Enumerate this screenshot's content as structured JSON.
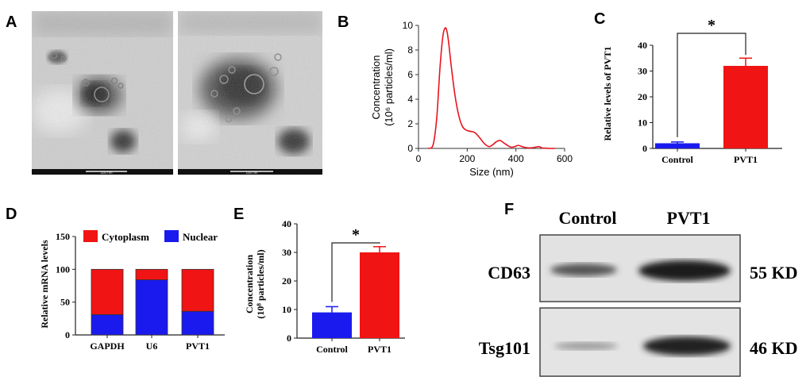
{
  "panels": {
    "a": {
      "label": "A",
      "scale_left": "200 nm",
      "scale_right": "100 nm"
    },
    "b": {
      "label": "B"
    },
    "c": {
      "label": "C"
    },
    "d": {
      "label": "D"
    },
    "e": {
      "label": "E"
    },
    "f": {
      "label": "F"
    }
  },
  "chart_data": [
    {
      "panel": "B",
      "type": "line",
      "xlabel": "Size (nm)",
      "ylabel": "Concentration",
      "ylabel_unit": "(10⁶ particles/ml)",
      "xlim": [
        0,
        600
      ],
      "ylim": [
        0,
        10
      ],
      "xticks": [
        0,
        200,
        400,
        600
      ],
      "yticks": [
        0,
        2,
        4,
        6,
        8,
        10
      ],
      "color": "#e8141e",
      "x": [
        40,
        60,
        75,
        88,
        100,
        110,
        118,
        125,
        135,
        150,
        165,
        180,
        195,
        210,
        230,
        250,
        270,
        290,
        305,
        320,
        335,
        350,
        365,
        380,
        395,
        410,
        425,
        445,
        465,
        480,
        495,
        505,
        520,
        540,
        560
      ],
      "y": [
        0,
        0.3,
        2.5,
        6.5,
        9.1,
        9.8,
        9.4,
        8.4,
        6.6,
        4.3,
        2.7,
        1.8,
        1.5,
        1.4,
        1.3,
        0.9,
        0.4,
        0.15,
        0.3,
        0.55,
        0.65,
        0.45,
        0.25,
        0.1,
        0.15,
        0.25,
        0.15,
        0.05,
        0.05,
        0.1,
        0.15,
        0.05,
        0.02,
        0,
        0
      ]
    },
    {
      "panel": "C",
      "type": "bar",
      "ylabel": "Relative levels of  PVT1",
      "categories": [
        "Control",
        "PVT1"
      ],
      "values": [
        2,
        32
      ],
      "errors": [
        0.5,
        3
      ],
      "colors": [
        "#1a1aee",
        "#f01414"
      ],
      "ylim": [
        0,
        40
      ],
      "yticks": [
        0,
        10,
        20,
        30,
        40
      ],
      "significance": "*"
    },
    {
      "panel": "D",
      "type": "bar",
      "stacked": true,
      "ylabel": "Relative mRNA levels",
      "categories": [
        "GAPDH",
        "U6",
        "PVT1"
      ],
      "series": [
        {
          "name": "Nuclear",
          "values": [
            31,
            84,
            36
          ],
          "color": "#1a1aee"
        },
        {
          "name": "Cytoplasm",
          "values": [
            69,
            16,
            64
          ],
          "color": "#f01414"
        }
      ],
      "legend": "top",
      "ylim": [
        0,
        150
      ],
      "yticks": [
        0,
        50,
        100,
        150
      ]
    },
    {
      "panel": "E",
      "type": "bar",
      "ylabel": "Concentration",
      "ylabel_unit": "(10⁸ particles/ml)",
      "categories": [
        "Control",
        "PVT1"
      ],
      "values": [
        9,
        30
      ],
      "errors": [
        2,
        2
      ],
      "colors": [
        "#1a1aee",
        "#f01414"
      ],
      "ylim": [
        0,
        40
      ],
      "yticks": [
        0,
        10,
        20,
        30,
        40
      ],
      "significance": "*"
    }
  ],
  "blot": {
    "columns": [
      "Control",
      "PVT1"
    ],
    "rows": [
      {
        "protein": "CD63",
        "weight": "55 KD"
      },
      {
        "protein": "Tsg101",
        "weight": "46 KD"
      }
    ]
  }
}
